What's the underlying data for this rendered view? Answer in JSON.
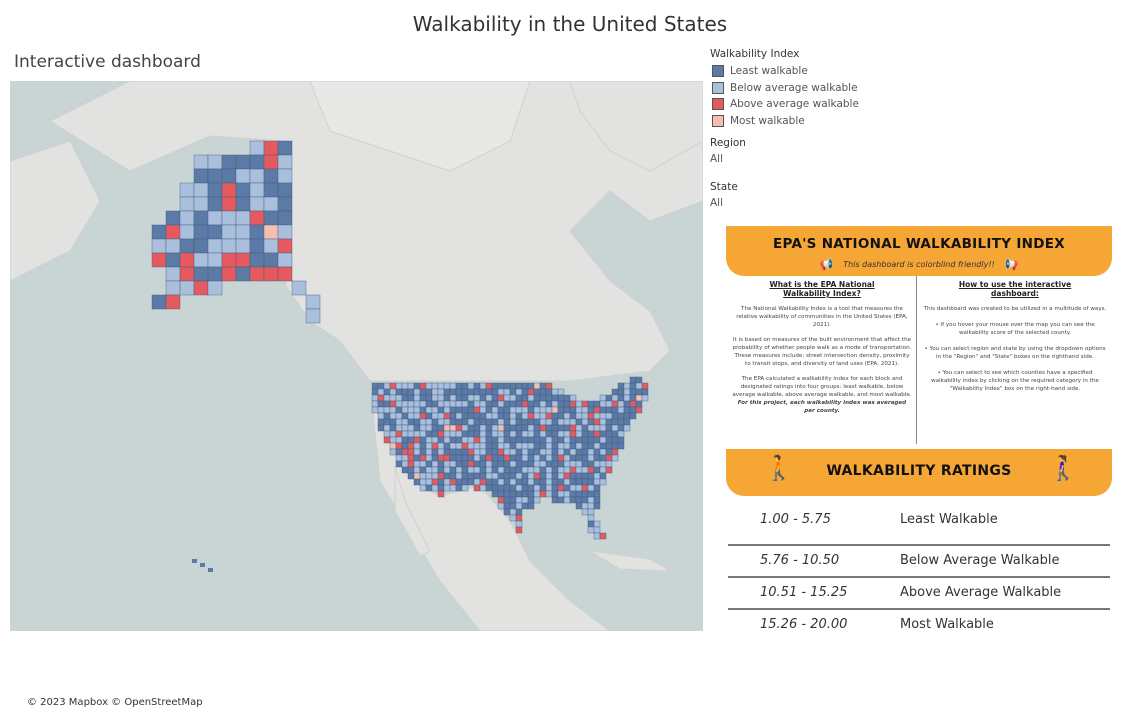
{
  "title": "Walkability in the United States",
  "subtitle": "Interactive dashboard",
  "map": {
    "attribution": "© 2023 Mapbox © OpenStreetMap",
    "colors": {
      "water": "#c9d5d4",
      "land": "#e2e2e0",
      "least": "#5b7aa5",
      "below": "#a9bfdc",
      "above": "#e45a5f",
      "most": "#f5bfae"
    }
  },
  "legend": {
    "title": "Walkability Index",
    "items": [
      {
        "label": "Least walkable",
        "color": "#5b7aa5"
      },
      {
        "label": "Below average walkable",
        "color": "#a9bfdc"
      },
      {
        "label": "Above average walkable",
        "color": "#e45a5f"
      },
      {
        "label": "Most walkable",
        "color": "#f5bfae"
      }
    ]
  },
  "filters": {
    "region": {
      "label": "Region",
      "value": "All"
    },
    "state": {
      "label": "State",
      "value": "All"
    }
  },
  "infographic": {
    "heading": "EPA'S NATIONAL WALKABILITY INDEX",
    "tagline": "This dashboard is colorblind friendly!!",
    "left_heading": "What is the EPA National Walkability Index?",
    "left_p1": "The National Walkability Index is a tool that measures the relative walkability of communities in the United States (EPA, 2021).",
    "left_p2": "It is based on measures of the built environment that affect the probability of whether people walk as a mode of transportation. These measures include: street intersection density, proximity to transit stops, and diversity of land uses (EPA, 2021).",
    "left_p3": "The EPA calculated a walkability index for each block and designated ratings into four groups: least walkable, below average walkable, above average walkable, and most walkable.",
    "left_p3_bold": "For this project, each walkability index was averaged per county.",
    "right_heading": "How to use the interactive dashboard:",
    "right_p1": "This dashboard was created to be utilized in a multitude of ways.",
    "right_bullets": [
      "If you hover your mouse over the map you can see the walkability score of the selected county.",
      "You can select region and state by using the dropdown options in the \"Region\" and \"State\" boxes on the righthand side.",
      "You can select to see which counties have a specified walkability index by clicking on the required category in the \"Walkability Index\" box on the right-hand side."
    ],
    "ratings_heading": "WALKABILITY RATINGS",
    "ratings": [
      {
        "range": "1.00 - 5.75",
        "label": "Least Walkable"
      },
      {
        "range": "5.76 - 10.50",
        "label": "Below Average Walkable"
      },
      {
        "range": "10.51 - 15.25",
        "label": "Above Average Walkable"
      },
      {
        "range": "15.26 - 20.00",
        "label": "Most Walkable"
      }
    ]
  }
}
